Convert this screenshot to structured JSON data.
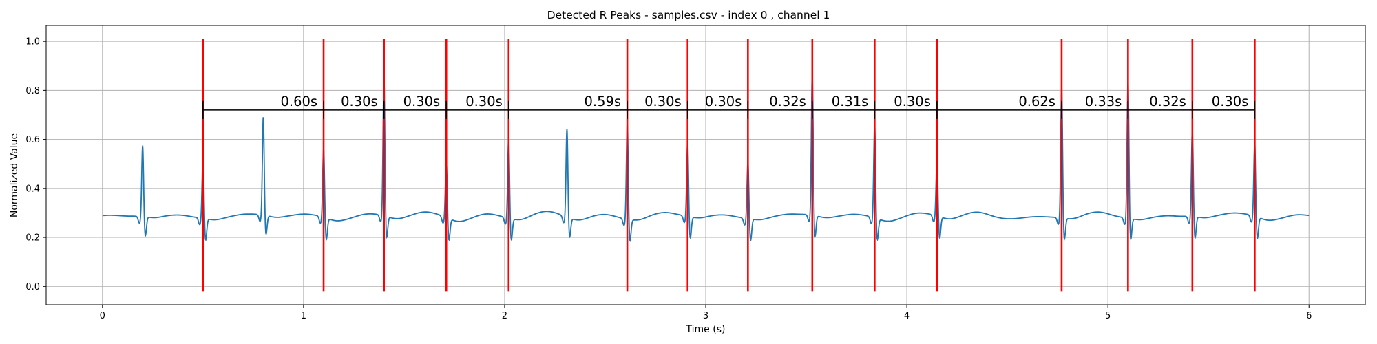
{
  "chart_data": {
    "type": "line",
    "title": "Detected R Peaks - samples.csv - index 0 , channel 1",
    "xlabel": "Time (s)",
    "ylabel": "Normalized Value",
    "xlim": [
      -0.28,
      6.28
    ],
    "ylim": [
      -0.075,
      1.065
    ],
    "xticks": [
      0,
      1,
      2,
      3,
      4,
      5,
      6
    ],
    "yticks": [
      0.0,
      0.2,
      0.4,
      0.6,
      0.8,
      1.0
    ],
    "grid": true,
    "colors": {
      "signal": "#1f77b4",
      "peaks": "#ff0000",
      "intervals": "#000000",
      "grid": "#b0b0b0"
    },
    "peak_line_range": [
      -0.02,
      1.01
    ],
    "interval_y": 0.72,
    "peaks": [
      {
        "t": 0.5,
        "v": 0.54
      },
      {
        "t": 1.1,
        "v": 0.57
      },
      {
        "t": 1.4,
        "v": 0.86
      },
      {
        "t": 1.71,
        "v": 0.52
      },
      {
        "t": 2.02,
        "v": 0.61
      },
      {
        "t": 2.61,
        "v": 0.68
      },
      {
        "t": 2.91,
        "v": 0.59
      },
      {
        "t": 3.21,
        "v": 0.52
      },
      {
        "t": 3.53,
        "v": 0.87
      },
      {
        "t": 3.84,
        "v": 0.67
      },
      {
        "t": 4.15,
        "v": 0.52
      },
      {
        "t": 4.77,
        "v": 0.82
      },
      {
        "t": 5.1,
        "v": 0.85
      },
      {
        "t": 5.42,
        "v": 0.64
      },
      {
        "t": 5.73,
        "v": 0.59
      }
    ],
    "interval_labels": [
      "0.60s",
      "0.30s",
      "0.30s",
      "0.30s",
      "0.59s",
      "0.30s",
      "0.30s",
      "0.32s",
      "0.31s",
      "0.30s",
      "0.62s",
      "0.33s",
      "0.32s",
      "0.30s"
    ],
    "unmarked_beats": [
      {
        "t": 0.2,
        "v": 0.58
      },
      {
        "t": 0.8,
        "v": 0.69
      },
      {
        "t": 2.31,
        "v": 0.65
      }
    ],
    "baseline": 0.285,
    "signal_range": [
      0.0,
      6.0
    ]
  }
}
